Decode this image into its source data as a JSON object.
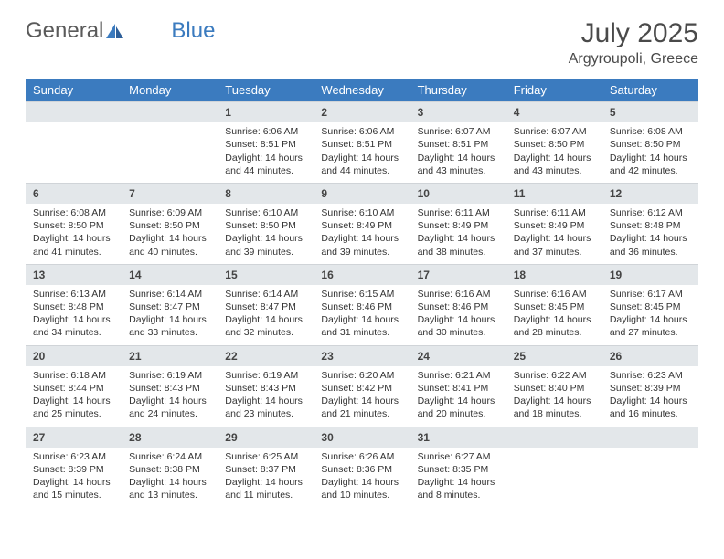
{
  "logo": {
    "text_general": "General",
    "text_blue": "Blue"
  },
  "title": {
    "month": "July 2025",
    "location": "Argyroupoli, Greece"
  },
  "colors": {
    "header_bg": "#3b7bbf",
    "header_text": "#ffffff",
    "daynum_bg": "#e3e7ea",
    "text": "#333333",
    "page_bg": "#ffffff"
  },
  "weekdays": [
    "Sunday",
    "Monday",
    "Tuesday",
    "Wednesday",
    "Thursday",
    "Friday",
    "Saturday"
  ],
  "weeks": [
    [
      null,
      null,
      {
        "n": "1",
        "sr": "Sunrise: 6:06 AM",
        "ss": "Sunset: 8:51 PM",
        "dl": "Daylight: 14 hours and 44 minutes."
      },
      {
        "n": "2",
        "sr": "Sunrise: 6:06 AM",
        "ss": "Sunset: 8:51 PM",
        "dl": "Daylight: 14 hours and 44 minutes."
      },
      {
        "n": "3",
        "sr": "Sunrise: 6:07 AM",
        "ss": "Sunset: 8:51 PM",
        "dl": "Daylight: 14 hours and 43 minutes."
      },
      {
        "n": "4",
        "sr": "Sunrise: 6:07 AM",
        "ss": "Sunset: 8:50 PM",
        "dl": "Daylight: 14 hours and 43 minutes."
      },
      {
        "n": "5",
        "sr": "Sunrise: 6:08 AM",
        "ss": "Sunset: 8:50 PM",
        "dl": "Daylight: 14 hours and 42 minutes."
      }
    ],
    [
      {
        "n": "6",
        "sr": "Sunrise: 6:08 AM",
        "ss": "Sunset: 8:50 PM",
        "dl": "Daylight: 14 hours and 41 minutes."
      },
      {
        "n": "7",
        "sr": "Sunrise: 6:09 AM",
        "ss": "Sunset: 8:50 PM",
        "dl": "Daylight: 14 hours and 40 minutes."
      },
      {
        "n": "8",
        "sr": "Sunrise: 6:10 AM",
        "ss": "Sunset: 8:50 PM",
        "dl": "Daylight: 14 hours and 39 minutes."
      },
      {
        "n": "9",
        "sr": "Sunrise: 6:10 AM",
        "ss": "Sunset: 8:49 PM",
        "dl": "Daylight: 14 hours and 39 minutes."
      },
      {
        "n": "10",
        "sr": "Sunrise: 6:11 AM",
        "ss": "Sunset: 8:49 PM",
        "dl": "Daylight: 14 hours and 38 minutes."
      },
      {
        "n": "11",
        "sr": "Sunrise: 6:11 AM",
        "ss": "Sunset: 8:49 PM",
        "dl": "Daylight: 14 hours and 37 minutes."
      },
      {
        "n": "12",
        "sr": "Sunrise: 6:12 AM",
        "ss": "Sunset: 8:48 PM",
        "dl": "Daylight: 14 hours and 36 minutes."
      }
    ],
    [
      {
        "n": "13",
        "sr": "Sunrise: 6:13 AM",
        "ss": "Sunset: 8:48 PM",
        "dl": "Daylight: 14 hours and 34 minutes."
      },
      {
        "n": "14",
        "sr": "Sunrise: 6:14 AM",
        "ss": "Sunset: 8:47 PM",
        "dl": "Daylight: 14 hours and 33 minutes."
      },
      {
        "n": "15",
        "sr": "Sunrise: 6:14 AM",
        "ss": "Sunset: 8:47 PM",
        "dl": "Daylight: 14 hours and 32 minutes."
      },
      {
        "n": "16",
        "sr": "Sunrise: 6:15 AM",
        "ss": "Sunset: 8:46 PM",
        "dl": "Daylight: 14 hours and 31 minutes."
      },
      {
        "n": "17",
        "sr": "Sunrise: 6:16 AM",
        "ss": "Sunset: 8:46 PM",
        "dl": "Daylight: 14 hours and 30 minutes."
      },
      {
        "n": "18",
        "sr": "Sunrise: 6:16 AM",
        "ss": "Sunset: 8:45 PM",
        "dl": "Daylight: 14 hours and 28 minutes."
      },
      {
        "n": "19",
        "sr": "Sunrise: 6:17 AM",
        "ss": "Sunset: 8:45 PM",
        "dl": "Daylight: 14 hours and 27 minutes."
      }
    ],
    [
      {
        "n": "20",
        "sr": "Sunrise: 6:18 AM",
        "ss": "Sunset: 8:44 PM",
        "dl": "Daylight: 14 hours and 25 minutes."
      },
      {
        "n": "21",
        "sr": "Sunrise: 6:19 AM",
        "ss": "Sunset: 8:43 PM",
        "dl": "Daylight: 14 hours and 24 minutes."
      },
      {
        "n": "22",
        "sr": "Sunrise: 6:19 AM",
        "ss": "Sunset: 8:43 PM",
        "dl": "Daylight: 14 hours and 23 minutes."
      },
      {
        "n": "23",
        "sr": "Sunrise: 6:20 AM",
        "ss": "Sunset: 8:42 PM",
        "dl": "Daylight: 14 hours and 21 minutes."
      },
      {
        "n": "24",
        "sr": "Sunrise: 6:21 AM",
        "ss": "Sunset: 8:41 PM",
        "dl": "Daylight: 14 hours and 20 minutes."
      },
      {
        "n": "25",
        "sr": "Sunrise: 6:22 AM",
        "ss": "Sunset: 8:40 PM",
        "dl": "Daylight: 14 hours and 18 minutes."
      },
      {
        "n": "26",
        "sr": "Sunrise: 6:23 AM",
        "ss": "Sunset: 8:39 PM",
        "dl": "Daylight: 14 hours and 16 minutes."
      }
    ],
    [
      {
        "n": "27",
        "sr": "Sunrise: 6:23 AM",
        "ss": "Sunset: 8:39 PM",
        "dl": "Daylight: 14 hours and 15 minutes."
      },
      {
        "n": "28",
        "sr": "Sunrise: 6:24 AM",
        "ss": "Sunset: 8:38 PM",
        "dl": "Daylight: 14 hours and 13 minutes."
      },
      {
        "n": "29",
        "sr": "Sunrise: 6:25 AM",
        "ss": "Sunset: 8:37 PM",
        "dl": "Daylight: 14 hours and 11 minutes."
      },
      {
        "n": "30",
        "sr": "Sunrise: 6:26 AM",
        "ss": "Sunset: 8:36 PM",
        "dl": "Daylight: 14 hours and 10 minutes."
      },
      {
        "n": "31",
        "sr": "Sunrise: 6:27 AM",
        "ss": "Sunset: 8:35 PM",
        "dl": "Daylight: 14 hours and 8 minutes."
      },
      null,
      null
    ]
  ]
}
